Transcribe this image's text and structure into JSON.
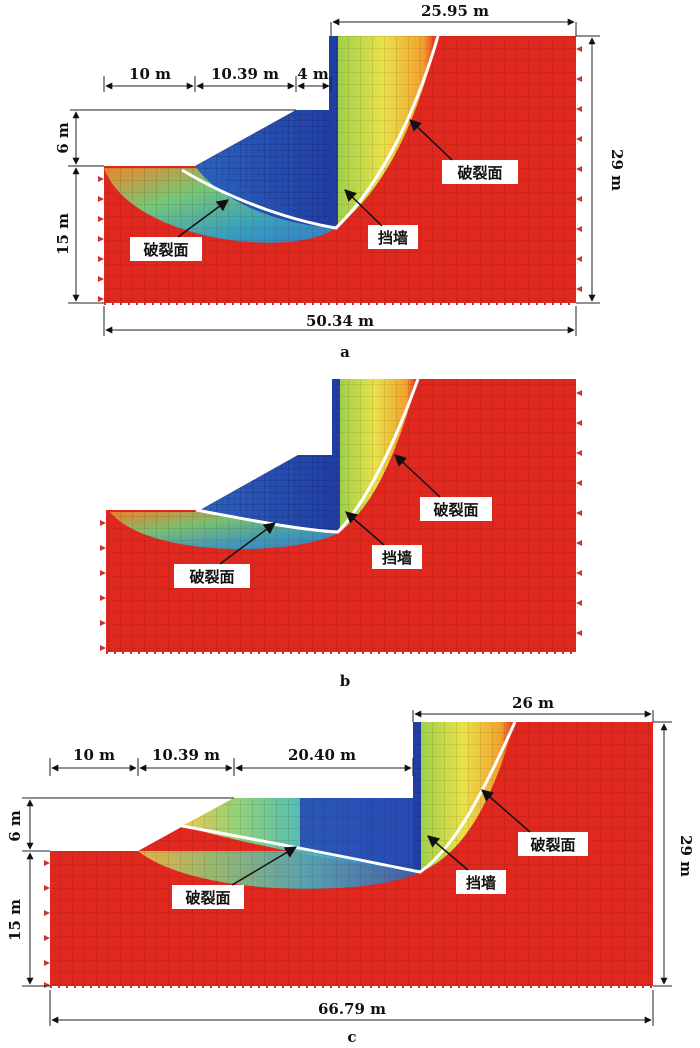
{
  "panels": [
    {
      "caption": "a",
      "dims": {
        "top_right": "25.95 m",
        "seg1": "10 m",
        "seg2": "10.39 m",
        "seg3": "4 m",
        "left_upper": "6 m",
        "left_lower": "15 m",
        "right": "29 m",
        "bottom": "50.34 m"
      },
      "labels": {
        "slip_right": "破裂面",
        "slip_left": "破裂面",
        "wall": "挡墙"
      }
    },
    {
      "caption": "b",
      "dims": {},
      "labels": {
        "slip_right": "破裂面",
        "slip_left": "破裂面",
        "wall": "挡墙"
      }
    },
    {
      "caption": "c",
      "dims": {
        "top_right": "26 m",
        "seg1": "10 m",
        "seg2": "10.39 m",
        "seg3": "20.40 m",
        "left_upper": "6 m",
        "left_lower": "15 m",
        "right": "29 m",
        "bottom": "66.79 m"
      },
      "labels": {
        "slip_right": "破裂面",
        "slip_left": "破裂面",
        "wall": "挡墙"
      }
    }
  ],
  "colors": {
    "background_field": "#e0281e",
    "wall": "#1f3fa8",
    "slip_surface": "#ffffff",
    "low_zone": [
      "#2445b4",
      "#2e9fd0",
      "#6fcf7a",
      "#e6e24a",
      "#f08a2a"
    ]
  }
}
